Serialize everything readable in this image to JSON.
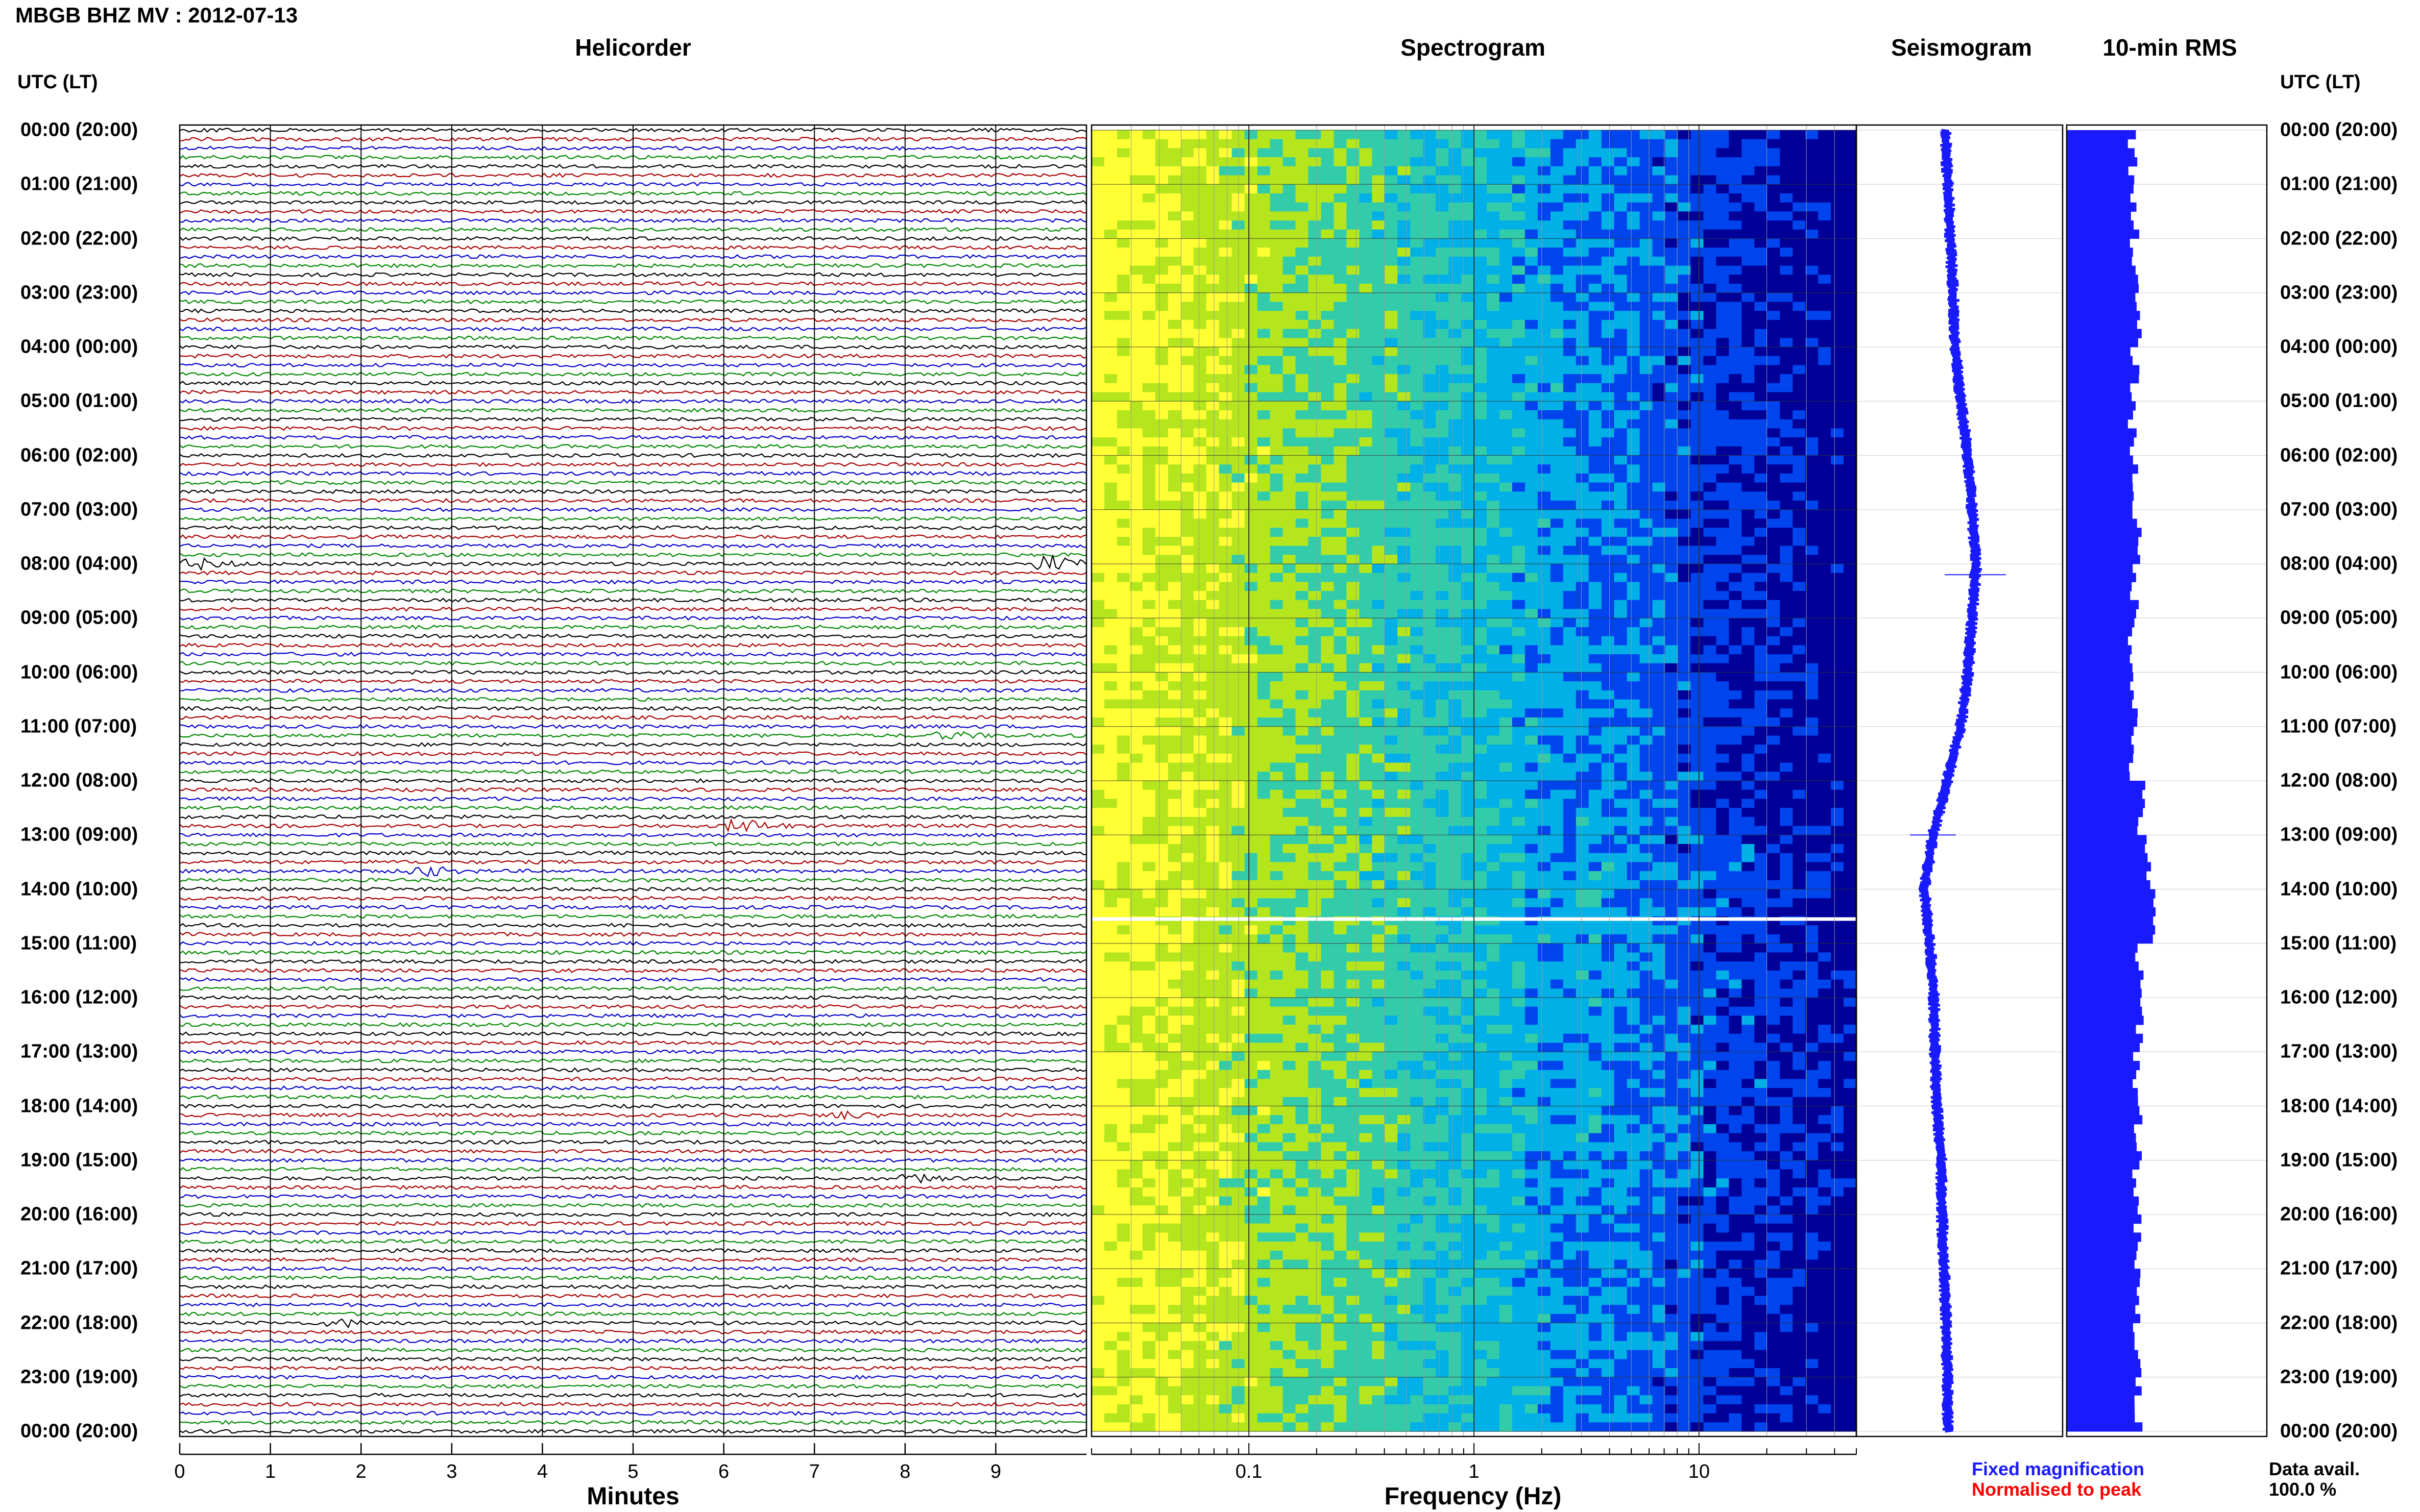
{
  "header": {
    "station_title": "MBGB BHZ MV : 2012-07-13",
    "utc_label_left": "UTC (LT)",
    "utc_label_right": "UTC (LT)"
  },
  "panels": {
    "helicorder": {
      "title": "Helicorder",
      "xlabel": "Minutes"
    },
    "spectrogram": {
      "title": "Spectrogram",
      "xlabel": "Frequency (Hz)"
    },
    "seismogram": {
      "title": "Seismogram"
    },
    "rms": {
      "title": "10-min RMS"
    }
  },
  "legend": {
    "fixed": "Fixed magnification",
    "normalised": "Normalised to peak",
    "fixed_color": "#1a1aff",
    "normalised_color": "#ff0000",
    "data_avail_label": "Data avail.",
    "data_avail_value": "100.0 %"
  },
  "chart_data": [
    {
      "type": "line",
      "panel": "Helicorder",
      "xlabel": "Minutes",
      "xlim": [
        0,
        10
      ],
      "xticks": [
        "0",
        "1",
        "2",
        "3",
        "4",
        "5",
        "6",
        "7",
        "8",
        "9"
      ],
      "trace_colors": [
        "#000000",
        "#aa0000",
        "#0000cc",
        "#008800"
      ],
      "rows_per_hour": 6,
      "row_minutes": 10,
      "events": [
        {
          "hour": 8.0,
          "minute": 0.2,
          "amplitude": 3
        },
        {
          "hour": 8.0,
          "minute": 9.6,
          "amplitude": 5
        },
        {
          "hour": 11.2,
          "minute": 8.5,
          "amplitude": 2
        },
        {
          "hour": 12.9,
          "minute": 6.2,
          "amplitude": 4
        },
        {
          "hour": 13.6,
          "minute": 2.7,
          "amplitude": 3
        },
        {
          "hour": 18.2,
          "minute": 7.3,
          "amplitude": 2
        },
        {
          "hour": 19.3,
          "minute": 8.1,
          "amplitude": 2
        },
        {
          "hour": 22.0,
          "minute": 1.8,
          "amplitude": 2
        }
      ]
    },
    {
      "type": "heatmap",
      "panel": "Spectrogram",
      "xlabel": "Frequency (Hz)",
      "xscale": "log",
      "xlim": [
        0.02,
        50
      ],
      "xticks": [
        "0.1",
        "1",
        "10"
      ],
      "colormap": [
        "#ffff33",
        "#b5e61d",
        "#33ccaa",
        "#00b0e6",
        "#0044ee",
        "#000099"
      ],
      "gap_utc_hour": 14.55
    },
    {
      "type": "line",
      "panel": "Seismogram",
      "color": "#1a1aff",
      "xlim": [
        -1,
        1
      ],
      "offset": [
        [
          0,
          0.0
        ],
        [
          2,
          0.05
        ],
        [
          4,
          0.1
        ],
        [
          5,
          0.15
        ],
        [
          6,
          0.22
        ],
        [
          7,
          0.26
        ],
        [
          8,
          0.3
        ],
        [
          9,
          0.26
        ],
        [
          10,
          0.22
        ],
        [
          11,
          0.15
        ],
        [
          12,
          0.02
        ],
        [
          13,
          -0.12
        ],
        [
          14,
          -0.2
        ],
        [
          15,
          -0.15
        ],
        [
          16,
          -0.11
        ],
        [
          17,
          -0.1
        ],
        [
          18,
          -0.08
        ],
        [
          19,
          -0.04
        ],
        [
          20,
          -0.03
        ],
        [
          21,
          -0.01
        ],
        [
          22,
          0.01
        ],
        [
          23,
          0.02
        ],
        [
          24,
          0.03
        ]
      ]
    },
    {
      "type": "bar",
      "panel": "10-min RMS",
      "color": "#1a1aff",
      "orientation": "horizontal",
      "interval_minutes": 10,
      "hourly_level": [
        0.33,
        0.34,
        0.34,
        0.35,
        0.34,
        0.33,
        0.34,
        0.35,
        0.34,
        0.33,
        0.34,
        0.33,
        0.37,
        0.4,
        0.43,
        0.36,
        0.37,
        0.35,
        0.36,
        0.35,
        0.35,
        0.35,
        0.35,
        0.36
      ]
    }
  ],
  "time_axis": {
    "utc_hours": [
      "00:00",
      "01:00",
      "02:00",
      "03:00",
      "04:00",
      "05:00",
      "06:00",
      "07:00",
      "08:00",
      "09:00",
      "10:00",
      "11:00",
      "12:00",
      "13:00",
      "14:00",
      "15:00",
      "16:00",
      "17:00",
      "18:00",
      "19:00",
      "20:00",
      "21:00",
      "22:00",
      "23:00",
      "00:00"
    ],
    "local_hours": [
      "(20:00)",
      "(21:00)",
      "(22:00)",
      "(23:00)",
      "(00:00)",
      "(01:00)",
      "(02:00)",
      "(03:00)",
      "(04:00)",
      "(05:00)",
      "(06:00)",
      "(07:00)",
      "(08:00)",
      "(09:00)",
      "(10:00)",
      "(11:00)",
      "(12:00)",
      "(13:00)",
      "(14:00)",
      "(15:00)",
      "(16:00)",
      "(17:00)",
      "(18:00)",
      "(19:00)",
      "(20:00)"
    ]
  }
}
